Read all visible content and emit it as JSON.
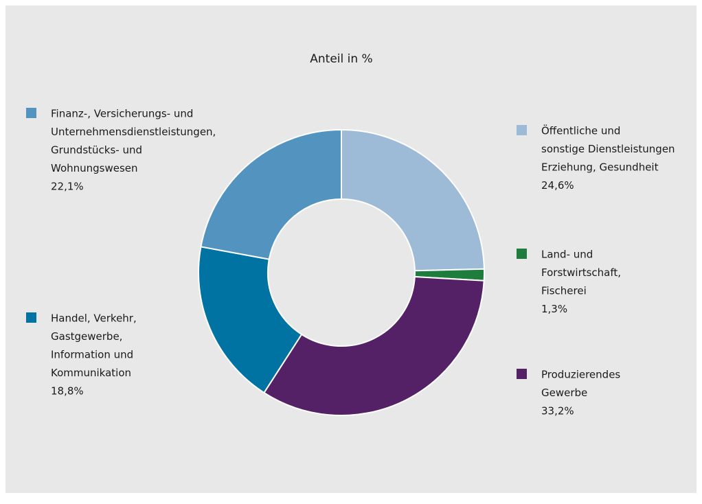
{
  "chart_data": {
    "type": "donut",
    "title": "Anteil in %",
    "categories": [
      [
        "Öffentliche und",
        "sonstige Dienstleistungen",
        "Erziehung, Gesundheit"
      ],
      [
        "Land- und",
        "Forstwirtschaft,",
        "Fischerei"
      ],
      [
        "Produzierendes",
        "Gewerbe"
      ],
      [
        "Handel, Verkehr,",
        "Gastgewerbe,",
        "Information und",
        "Kommunikation"
      ],
      [
        "Finanz-, Versicherungs- und",
        "Unternehmensdienstleistungen,",
        "Grundstücks- und",
        "Wohnungswesen"
      ]
    ],
    "values": [
      24.6,
      1.3,
      33.2,
      18.8,
      22.1
    ],
    "value_labels": [
      "24,6%",
      "1,3%",
      "33,2%",
      "18,8%",
      "22,1%"
    ],
    "colors": [
      "#9dbad6",
      "#1e7d3c",
      "#552166",
      "#0073a3",
      "#5294bf"
    ]
  }
}
